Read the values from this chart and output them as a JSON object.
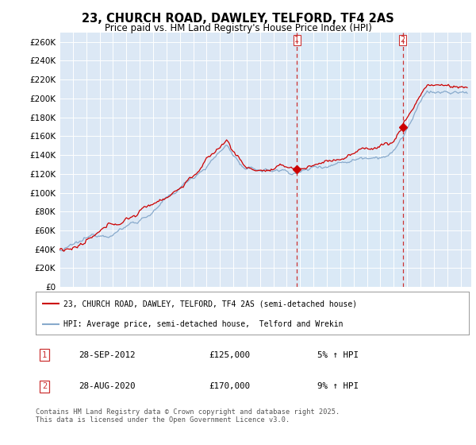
{
  "title": "23, CHURCH ROAD, DAWLEY, TELFORD, TF4 2AS",
  "subtitle": "Price paid vs. HM Land Registry's House Price Index (HPI)",
  "legend_line1": "23, CHURCH ROAD, DAWLEY, TELFORD, TF4 2AS (semi-detached house)",
  "legend_line2": "HPI: Average price, semi-detached house,  Telford and Wrekin",
  "line_color_red": "#cc0000",
  "line_color_blue": "#88aacc",
  "marker1_date": "28-SEP-2012",
  "marker1_price": "£125,000",
  "marker1_hpi": "5% ↑ HPI",
  "marker2_date": "28-AUG-2020",
  "marker2_price": "£170,000",
  "marker2_hpi": "9% ↑ HPI",
  "footer": "Contains HM Land Registry data © Crown copyright and database right 2025.\nThis data is licensed under the Open Government Licence v3.0.",
  "plot_bg": "#dce8f5",
  "highlight_bg": "#e0ecf8",
  "grid_color": "#ffffff",
  "marker1_x_year": 2012.75,
  "marker2_x_year": 2020.67,
  "ylim": [
    0,
    270000
  ],
  "xlim_start": 1995,
  "xlim_end": 2025.8
}
